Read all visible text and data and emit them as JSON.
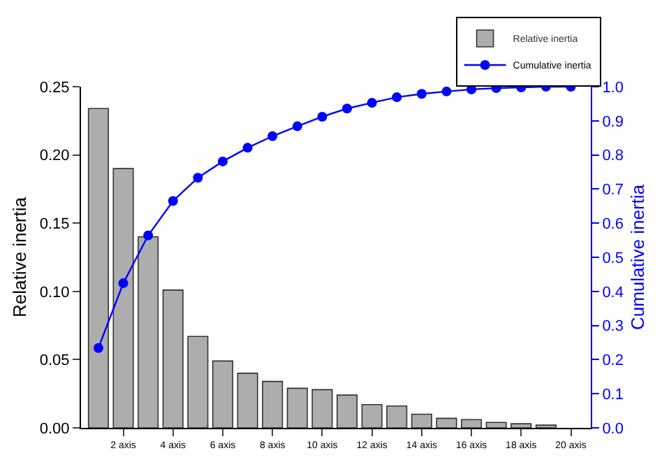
{
  "chart_data": {
    "type": "bar",
    "ylabel": "Relative inertia",
    "y2label": "Cumulative inertia",
    "categories": [
      null,
      "2 axis",
      null,
      "4 axis",
      null,
      "6 axis",
      null,
      "8 axis",
      null,
      "10 axis",
      null,
      "12 axis",
      null,
      "14 axis",
      null,
      "16 axis",
      null,
      "18 axis",
      null,
      "20 axis"
    ],
    "series": [
      {
        "name": "Relative inertia",
        "color": "#333333",
        "values": [
          0.234,
          0.19,
          0.14,
          0.101,
          0.067,
          0.049,
          0.04,
          0.034,
          0.029,
          0.028,
          0.024,
          0.017,
          0.016,
          0.01,
          0.007,
          0.006,
          0.004,
          0.003,
          0.002,
          null
        ]
      },
      {
        "name": "Cumulative inertia",
        "type": "line",
        "axis": "y2",
        "color": "#0000ff",
        "marker": "circle",
        "values": [
          0.234,
          0.424,
          0.564,
          0.665,
          0.733,
          0.781,
          0.821,
          0.855,
          0.884,
          0.912,
          0.936,
          0.953,
          0.969,
          0.979,
          0.986,
          0.992,
          0.996,
          0.998,
          1.0,
          1.0
        ]
      }
    ],
    "ylim": [
      0,
      0.25
    ],
    "yticks": [
      {
        "value": 0,
        "label": "0.00"
      },
      0.05,
      {
        "value": 0.1,
        "label": "0.10"
      },
      0.15,
      {
        "value": 0.2,
        "label": "0.20"
      },
      0.25
    ],
    "y2lim": [
      0,
      1.0
    ],
    "y2ticks": [
      {
        "value": 0,
        "label": "0.0"
      },
      0.1,
      0.2,
      0.3,
      0.4,
      0.5,
      0.6,
      0.7,
      0.8,
      0.9,
      {
        "value": 1,
        "label": "1.0"
      }
    ],
    "legend": "top right"
  }
}
